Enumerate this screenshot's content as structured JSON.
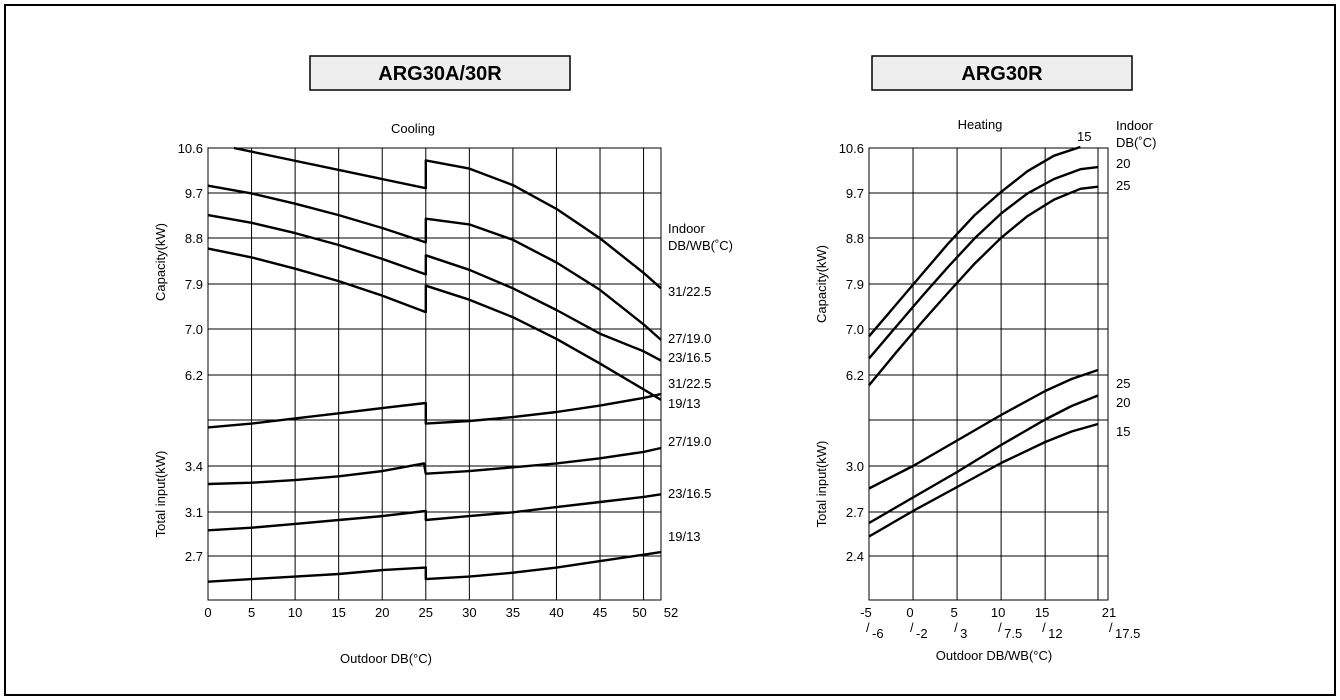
{
  "charts": {
    "cooling": {
      "box_title": "ARG30A/30R",
      "subtitle": "Cooling",
      "xlabel": "Outdoor DB(°C)",
      "ylabel_capacity": "Capacity(kW)",
      "ylabel_input": "Total input(kW)",
      "legend_title_1": "Indoor",
      "legend_title_2": "DB/WB(˚C)"
    },
    "heating": {
      "box_title": "ARG30R",
      "subtitle": "Heating",
      "xlabel": "Outdoor DB/WB(°C)",
      "ylabel_capacity": "Capacity(kW)",
      "ylabel_input": "Total input(kW)",
      "legend_title_1": "Indoor",
      "legend_title_2": "DB(˚C)"
    }
  },
  "chart_data": [
    {
      "type": "line",
      "title": "ARG30A/30R",
      "subtitle": "Cooling",
      "xlabel": "Outdoor DB(°C)",
      "x_ticks": [
        "0",
        "5",
        "10",
        "15",
        "20",
        "25",
        "30",
        "35",
        "40",
        "45",
        "50",
        "52"
      ],
      "capacity_axis": {
        "label": "Capacity(kW)",
        "ticks": [
          "10.6",
          "9.7",
          "8.8",
          "7.9",
          "7.0",
          "6.2"
        ]
      },
      "input_axis": {
        "label": "Total input(kW)",
        "ticks": [
          "3.4",
          "3.1",
          "2.7"
        ]
      },
      "legend_title": "Indoor DB/WB(˚C)",
      "capacity_series": [
        {
          "name": "31/22.5",
          "points": [
            [
              3,
              10.6
            ],
            [
              25,
              9.82
            ],
            [
              25,
              10.36
            ],
            [
              30,
              10.2
            ],
            [
              35,
              9.88
            ],
            [
              40,
              9.42
            ],
            [
              45,
              8.85
            ],
            [
              50,
              8.18
            ],
            [
              52,
              7.88
            ]
          ]
        },
        {
          "name": "27/19.0",
          "points": [
            [
              0,
              9.87
            ],
            [
              5,
              9.72
            ],
            [
              10,
              9.52
            ],
            [
              15,
              9.3
            ],
            [
              20,
              9.05
            ],
            [
              25,
              8.77
            ],
            [
              25,
              9.23
            ],
            [
              30,
              9.12
            ],
            [
              35,
              8.82
            ],
            [
              40,
              8.38
            ],
            [
              45,
              7.85
            ],
            [
              50,
              7.18
            ],
            [
              52,
              6.88
            ]
          ]
        },
        {
          "name": "23/16.5",
          "points": [
            [
              0,
              9.3
            ],
            [
              5,
              9.15
            ],
            [
              10,
              8.95
            ],
            [
              15,
              8.72
            ],
            [
              20,
              8.45
            ],
            [
              25,
              8.15
            ],
            [
              25,
              8.52
            ],
            [
              30,
              8.24
            ],
            [
              35,
              7.88
            ],
            [
              40,
              7.46
            ],
            [
              45,
              7.0
            ],
            [
              50,
              6.66
            ],
            [
              52,
              6.48
            ]
          ]
        },
        {
          "name": "19/13",
          "points": [
            [
              0,
              8.65
            ],
            [
              5,
              8.48
            ],
            [
              10,
              8.26
            ],
            [
              15,
              8.02
            ],
            [
              20,
              7.74
            ],
            [
              25,
              7.42
            ],
            [
              25,
              7.93
            ],
            [
              30,
              7.66
            ],
            [
              35,
              7.32
            ],
            [
              40,
              6.9
            ],
            [
              45,
              6.42
            ],
            [
              50,
              5.92
            ],
            [
              52,
              5.72
            ]
          ]
        }
      ],
      "input_series": [
        {
          "name": "31/22.5",
          "points": [
            [
              0,
              3.7
            ],
            [
              5,
              3.73
            ],
            [
              10,
              3.77
            ],
            [
              15,
              3.81
            ],
            [
              20,
              3.85
            ],
            [
              25,
              3.89
            ],
            [
              25,
              3.73
            ],
            [
              30,
              3.75
            ],
            [
              35,
              3.78
            ],
            [
              40,
              3.82
            ],
            [
              45,
              3.87
            ],
            [
              50,
              3.93
            ],
            [
              52,
              3.96
            ]
          ]
        },
        {
          "name": "27/19.0",
          "points": [
            [
              0,
              3.26
            ],
            [
              5,
              3.27
            ],
            [
              10,
              3.29
            ],
            [
              15,
              3.32
            ],
            [
              20,
              3.36
            ],
            [
              24.8,
              3.42
            ],
            [
              25,
              3.34
            ],
            [
              30,
              3.36
            ],
            [
              35,
              3.39
            ],
            [
              40,
              3.42
            ],
            [
              45,
              3.46
            ],
            [
              50,
              3.51
            ],
            [
              52,
              3.54
            ]
          ]
        },
        {
          "name": "23/16.5",
          "points": [
            [
              0,
              2.9
            ],
            [
              5,
              2.92
            ],
            [
              10,
              2.95
            ],
            [
              15,
              2.98
            ],
            [
              20,
              3.01
            ],
            [
              25,
              3.05
            ],
            [
              25,
              2.98
            ],
            [
              30,
              3.01
            ],
            [
              35,
              3.04
            ],
            [
              40,
              3.08
            ],
            [
              45,
              3.12
            ],
            [
              50,
              3.16
            ],
            [
              52,
              3.18
            ]
          ]
        },
        {
          "name": "19/13",
          "points": [
            [
              0,
              2.5
            ],
            [
              5,
              2.52
            ],
            [
              10,
              2.54
            ],
            [
              15,
              2.56
            ],
            [
              20,
              2.59
            ],
            [
              25,
              2.61
            ],
            [
              25,
              2.52
            ],
            [
              30,
              2.54
            ],
            [
              35,
              2.57
            ],
            [
              40,
              2.61
            ],
            [
              45,
              2.66
            ],
            [
              50,
              2.71
            ],
            [
              52,
              2.73
            ]
          ]
        }
      ]
    },
    {
      "type": "line",
      "title": "ARG30R",
      "subtitle": "Heating",
      "xlabel": "Outdoor DB/WB(°C)",
      "x_ticks": [
        {
          "db": "-5",
          "wb": "-6"
        },
        {
          "db": "0",
          "wb": "-2"
        },
        {
          "db": "5",
          "wb": "3"
        },
        {
          "db": "10",
          "wb": "7.5"
        },
        {
          "db": "15",
          "wb": "12"
        },
        {
          "db": "21",
          "wb": "17.5"
        }
      ],
      "capacity_axis": {
        "label": "Capacity(kW)",
        "ticks": [
          "10.6",
          "9.7",
          "8.8",
          "7.9",
          "7.0",
          "6.2"
        ]
      },
      "input_axis": {
        "label": "Total input(kW)",
        "ticks": [
          "3.0",
          "2.7",
          "2.4"
        ]
      },
      "legend_title": "Indoor DB(˚C)",
      "capacity_series": [
        {
          "name": "15",
          "points": [
            [
              -5,
              6.95
            ],
            [
              -2,
              7.55
            ],
            [
              1,
              8.15
            ],
            [
              4,
              8.75
            ],
            [
              7,
              9.3
            ],
            [
              10,
              9.75
            ],
            [
              13,
              10.15
            ],
            [
              16,
              10.45
            ],
            [
              19,
              10.62
            ]
          ]
        },
        {
          "name": "20",
          "points": [
            [
              -5,
              6.52
            ],
            [
              -2,
              7.12
            ],
            [
              1,
              7.72
            ],
            [
              4,
              8.3
            ],
            [
              7,
              8.85
            ],
            [
              10,
              9.33
            ],
            [
              13,
              9.72
            ],
            [
              16,
              10.0
            ],
            [
              19,
              10.19
            ],
            [
              21,
              10.23
            ]
          ]
        },
        {
          "name": "25",
          "points": [
            [
              -5,
              6.0
            ],
            [
              -2,
              6.62
            ],
            [
              1,
              7.22
            ],
            [
              4,
              7.8
            ],
            [
              7,
              8.36
            ],
            [
              10,
              8.86
            ],
            [
              13,
              9.28
            ],
            [
              16,
              9.6
            ],
            [
              19,
              9.81
            ],
            [
              21,
              9.85
            ]
          ]
        }
      ],
      "input_series": [
        {
          "name": "25",
          "points": [
            [
              -5,
              2.85
            ],
            [
              0,
              3.0
            ],
            [
              5,
              3.17
            ],
            [
              10,
              3.34
            ],
            [
              15,
              3.5
            ],
            [
              18,
              3.58
            ],
            [
              21,
              3.64
            ]
          ]
        },
        {
          "name": "20",
          "points": [
            [
              -5,
              2.62
            ],
            [
              0,
              2.79
            ],
            [
              5,
              2.96
            ],
            [
              10,
              3.14
            ],
            [
              15,
              3.31
            ],
            [
              18,
              3.4
            ],
            [
              21,
              3.47
            ]
          ]
        },
        {
          "name": "15",
          "points": [
            [
              -5,
              2.53
            ],
            [
              0,
              2.7
            ],
            [
              5,
              2.86
            ],
            [
              10,
              3.02
            ],
            [
              15,
              3.16
            ],
            [
              18,
              3.23
            ],
            [
              21,
              3.28
            ]
          ]
        }
      ]
    }
  ]
}
